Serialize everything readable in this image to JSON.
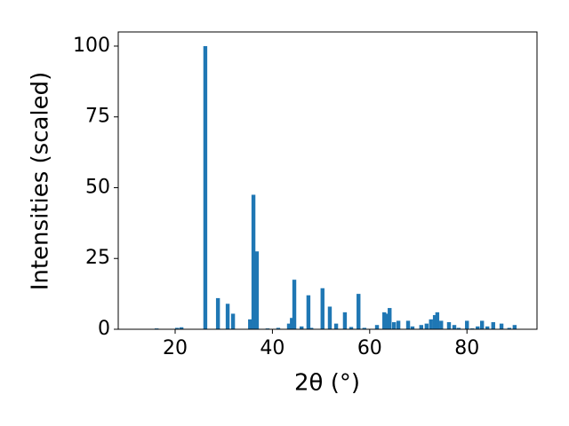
{
  "chart_data": {
    "type": "bar",
    "xlabel": "2θ (°)",
    "ylabel": "Intensities (scaled)",
    "color": "#1f77b4",
    "x": [
      16.2,
      20.4,
      21.3,
      26.2,
      28.8,
      30.8,
      31.9,
      35.4,
      36.1,
      36.8,
      39.0,
      41.2,
      43.4,
      44.0,
      44.5,
      46.0,
      47.4,
      48.0,
      50.3,
      51.8,
      53.1,
      54.9,
      56.2,
      57.7,
      58.9,
      61.5,
      63.0,
      63.5,
      64.1,
      65.0,
      65.9,
      67.9,
      68.8,
      70.6,
      71.7,
      72.6,
      73.4,
      73.9,
      74.7,
      76.3,
      77.4,
      78.3,
      80.0,
      81.1,
      82.2,
      83.1,
      84.2,
      85.4,
      87.1,
      88.7,
      89.8
    ],
    "values": [
      0.3,
      0.5,
      0.7,
      100,
      11,
      9,
      5.5,
      3.5,
      47.5,
      27.5,
      0.3,
      0.5,
      2,
      4,
      17.5,
      1,
      12,
      0.5,
      14.5,
      8,
      2,
      6,
      0.8,
      12.5,
      0.5,
      1.5,
      6,
      5.5,
      7.5,
      2.5,
      3,
      3,
      1,
      1.5,
      2,
      3.5,
      5,
      6,
      3,
      2.5,
      1.5,
      0.5,
      3,
      0.3,
      1,
      3,
      1,
      2.5,
      2,
      0.5,
      1.5
    ],
    "xlim": [
      8.3,
      94.4
    ],
    "xticks": [
      20,
      40,
      60,
      80
    ],
    "ylim": [
      0,
      105
    ],
    "yticks": [
      0,
      25,
      50,
      75,
      100
    ],
    "grid": false
  }
}
